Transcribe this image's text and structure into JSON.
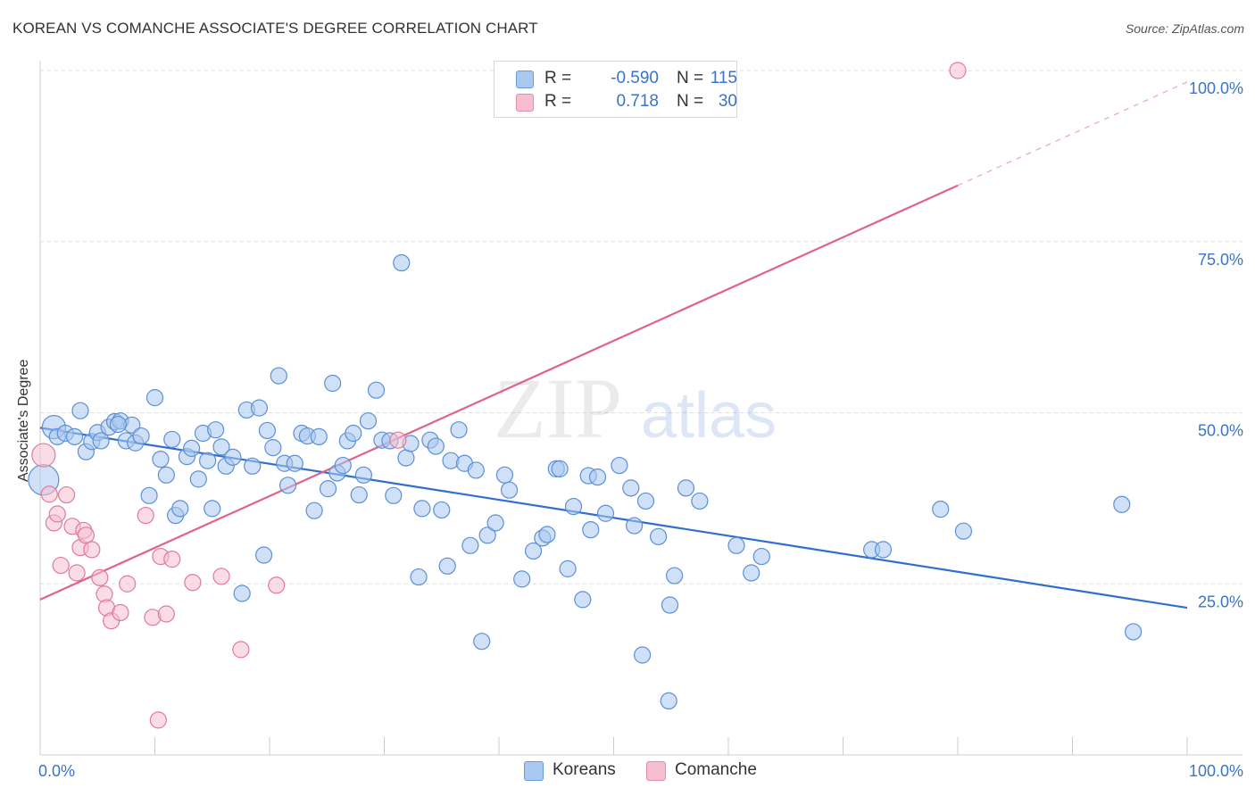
{
  "title": "KOREAN VS COMANCHE ASSOCIATE'S DEGREE CORRELATION CHART",
  "source": "Source: ZipAtlas.com",
  "watermark": {
    "zip": "ZIP",
    "atlas": "atlas"
  },
  "legend": {
    "rows": [
      {
        "r_label": "R =",
        "r_value": "-0.590",
        "n_label": "N =",
        "n_value": "115",
        "color": "#a9c8f0"
      },
      {
        "r_label": "R =",
        "r_value": "0.718",
        "n_label": "N =",
        "n_value": "30",
        "color": "#f6bfd0"
      }
    ]
  },
  "bottom_legend": {
    "koreans": "Koreans",
    "comanche": "Comanche"
  },
  "chart_data": {
    "type": "scatter",
    "title": "KOREAN VS COMANCHE ASSOCIATE'S DEGREE CORRELATION CHART",
    "xlabel": "",
    "ylabel": "Associate's Degree",
    "xlim": [
      0,
      100
    ],
    "ylim": [
      0,
      100
    ],
    "x_tick_labels": [
      "0.0%",
      "100.0%"
    ],
    "y_tick_labels": [
      "25.0%",
      "50.0%",
      "75.0%",
      "100.0%"
    ],
    "y_ticks": [
      25,
      50,
      75,
      100
    ],
    "grid": true,
    "legend_position": "top-center",
    "colors": {
      "koreans_fill": "#a9c8f0",
      "koreans_edge": "#5b8fd6",
      "koreans_line": "#2f6fcf",
      "comanche_fill": "#f6bfd0",
      "comanche_edge": "#e07a9c",
      "comanche_line": "#e0628a"
    },
    "series": [
      {
        "name": "Koreans",
        "trend": {
          "x": [
            0,
            100
          ],
          "y": [
            47.8,
            21.5
          ]
        },
        "points": [
          [
            0.3,
            40.2
          ],
          [
            1.2,
            47.9
          ],
          [
            1.5,
            46.5
          ],
          [
            2.2,
            47.0
          ],
          [
            3.0,
            46.5
          ],
          [
            3.5,
            50.3
          ],
          [
            4.0,
            44.3
          ],
          [
            4.5,
            45.8
          ],
          [
            5.0,
            47.1
          ],
          [
            5.3,
            45.9
          ],
          [
            6.0,
            47.9
          ],
          [
            6.5,
            48.7
          ],
          [
            7.0,
            48.8
          ],
          [
            7.5,
            45.9
          ],
          [
            8.0,
            48.2
          ],
          [
            8.3,
            45.6
          ],
          [
            8.8,
            46.6
          ],
          [
            9.5,
            37.9
          ],
          [
            10.0,
            52.2
          ],
          [
            10.5,
            43.2
          ],
          [
            11.0,
            40.9
          ],
          [
            11.5,
            46.1
          ],
          [
            11.8,
            35.0
          ],
          [
            12.2,
            36.0
          ],
          [
            12.8,
            43.6
          ],
          [
            13.2,
            44.8
          ],
          [
            13.8,
            40.3
          ],
          [
            14.2,
            47.0
          ],
          [
            14.6,
            43.0
          ],
          [
            15.3,
            47.5
          ],
          [
            15.8,
            45.0
          ],
          [
            16.2,
            42.2
          ],
          [
            16.8,
            43.5
          ],
          [
            17.6,
            23.6
          ],
          [
            18.0,
            50.4
          ],
          [
            18.5,
            42.2
          ],
          [
            19.1,
            50.7
          ],
          [
            19.5,
            29.2
          ],
          [
            19.8,
            47.4
          ],
          [
            20.3,
            44.9
          ],
          [
            20.8,
            55.4
          ],
          [
            21.3,
            42.6
          ],
          [
            21.6,
            39.4
          ],
          [
            22.2,
            42.6
          ],
          [
            22.8,
            47.0
          ],
          [
            23.3,
            46.6
          ],
          [
            23.9,
            35.7
          ],
          [
            24.3,
            46.5
          ],
          [
            25.1,
            38.9
          ],
          [
            25.5,
            54.3
          ],
          [
            25.9,
            41.2
          ],
          [
            26.4,
            42.3
          ],
          [
            26.8,
            45.9
          ],
          [
            27.3,
            47.0
          ],
          [
            27.8,
            38.0
          ],
          [
            28.2,
            40.9
          ],
          [
            28.6,
            48.8
          ],
          [
            29.3,
            53.3
          ],
          [
            29.8,
            46.0
          ],
          [
            30.5,
            45.9
          ],
          [
            30.8,
            37.9
          ],
          [
            31.5,
            71.9
          ],
          [
            31.9,
            43.4
          ],
          [
            32.3,
            45.5
          ],
          [
            33.0,
            26.0
          ],
          [
            33.3,
            36.0
          ],
          [
            34.0,
            46.0
          ],
          [
            34.5,
            45.1
          ],
          [
            35.0,
            35.8
          ],
          [
            35.5,
            27.6
          ],
          [
            35.8,
            43.0
          ],
          [
            36.5,
            47.5
          ],
          [
            37.0,
            42.6
          ],
          [
            37.5,
            30.6
          ],
          [
            38.0,
            41.6
          ],
          [
            38.5,
            16.6
          ],
          [
            39.0,
            32.1
          ],
          [
            39.7,
            33.9
          ],
          [
            40.5,
            40.9
          ],
          [
            40.9,
            38.7
          ],
          [
            42.0,
            25.7
          ],
          [
            43.0,
            29.8
          ],
          [
            43.8,
            31.7
          ],
          [
            44.2,
            32.2
          ],
          [
            45.0,
            41.8
          ],
          [
            45.3,
            41.8
          ],
          [
            46.0,
            27.2
          ],
          [
            46.5,
            36.3
          ],
          [
            47.3,
            22.7
          ],
          [
            47.8,
            40.8
          ],
          [
            48.0,
            32.9
          ],
          [
            48.6,
            40.6
          ],
          [
            49.3,
            35.3
          ],
          [
            50.5,
            42.3
          ],
          [
            51.5,
            39.0
          ],
          [
            51.8,
            33.5
          ],
          [
            52.5,
            14.6
          ],
          [
            52.8,
            37.1
          ],
          [
            53.9,
            31.9
          ],
          [
            54.8,
            7.9
          ],
          [
            54.9,
            21.9
          ],
          [
            55.3,
            26.2
          ],
          [
            56.3,
            39.0
          ],
          [
            57.5,
            37.1
          ],
          [
            62.9,
            29.0
          ],
          [
            72.5,
            30.0
          ],
          [
            73.5,
            30.0
          ],
          [
            78.5,
            35.9
          ],
          [
            80.5,
            32.7
          ],
          [
            94.3,
            36.6
          ],
          [
            95.3,
            18.0
          ],
          [
            62.0,
            26.6
          ],
          [
            60.7,
            30.6
          ],
          [
            15.0,
            36.0
          ],
          [
            6.8,
            48.3
          ]
        ]
      },
      {
        "name": "Comanche",
        "trend": {
          "x": [
            0,
            80
          ],
          "y": [
            22.7,
            83.2
          ]
        },
        "points": [
          [
            0.3,
            43.8
          ],
          [
            0.8,
            38.1
          ],
          [
            1.2,
            33.9
          ],
          [
            1.5,
            35.2
          ],
          [
            1.8,
            27.7
          ],
          [
            2.3,
            38.0
          ],
          [
            2.8,
            33.4
          ],
          [
            3.2,
            26.6
          ],
          [
            3.5,
            30.3
          ],
          [
            3.8,
            32.8
          ],
          [
            4.0,
            32.1
          ],
          [
            4.5,
            30.0
          ],
          [
            5.2,
            25.9
          ],
          [
            5.6,
            23.5
          ],
          [
            5.8,
            21.5
          ],
          [
            6.2,
            19.6
          ],
          [
            7.0,
            20.8
          ],
          [
            7.6,
            25.0
          ],
          [
            9.2,
            35.0
          ],
          [
            9.8,
            20.1
          ],
          [
            10.3,
            5.1
          ],
          [
            10.5,
            29.0
          ],
          [
            11.0,
            20.6
          ],
          [
            11.5,
            28.6
          ],
          [
            13.3,
            25.2
          ],
          [
            15.8,
            26.1
          ],
          [
            17.5,
            15.4
          ],
          [
            20.6,
            24.8
          ],
          [
            31.2,
            46.0
          ],
          [
            80.0,
            100.0
          ]
        ]
      }
    ]
  }
}
